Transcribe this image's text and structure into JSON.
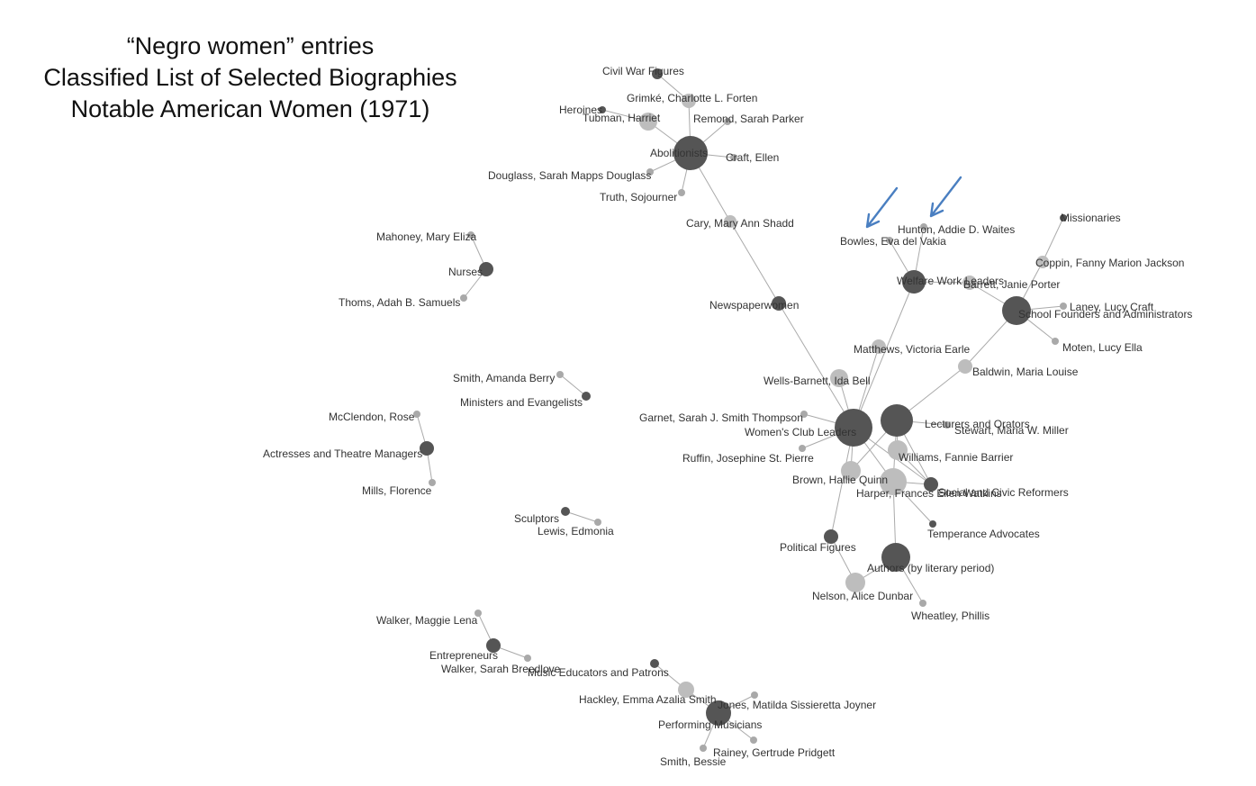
{
  "title": {
    "line1": "“Negro women” entries",
    "line2": "Classified List of Selected Biographies",
    "line3": "Notable American Women (1971)"
  },
  "colors": {
    "category": "#555555",
    "person": "#bdbdbd",
    "person_small": "#a9a9a9",
    "edge": "#aaaaaa",
    "arrow": "#4a7fc1"
  },
  "nodes": [
    {
      "id": "civil-war",
      "label": "Civil War Figures"
    },
    {
      "id": "grimke",
      "label": "Grimké, Charlotte L. Forten"
    },
    {
      "id": "heroines",
      "label": "Heroines"
    },
    {
      "id": "tubman",
      "label": "Tubman, Harriet"
    },
    {
      "id": "remond",
      "label": "Remond, Sarah Parker"
    },
    {
      "id": "abolitionists",
      "label": "Abolitionists"
    },
    {
      "id": "craft",
      "label": "Craft, Ellen"
    },
    {
      "id": "douglass",
      "label": "Douglass, Sarah Mapps Douglass"
    },
    {
      "id": "truth",
      "label": "Truth, Sojourner"
    },
    {
      "id": "cary",
      "label": "Cary, Mary Ann Shadd"
    },
    {
      "id": "newspaperwomen",
      "label": "Newspaperwomen"
    },
    {
      "id": "mahoney",
      "label": "Mahoney, Mary Eliza"
    },
    {
      "id": "nurses",
      "label": "Nurses"
    },
    {
      "id": "thoms",
      "label": "Thoms, Adah B. Samuels"
    },
    {
      "id": "smith-amanda",
      "label": "Smith, Amanda Berry"
    },
    {
      "id": "ministers",
      "label": "Ministers and Evangelists"
    },
    {
      "id": "mcclendon",
      "label": "McClendon, Rose"
    },
    {
      "id": "actresses",
      "label": "Actresses and Theatre Managers"
    },
    {
      "id": "mills",
      "label": "Mills, Florence"
    },
    {
      "id": "sculptors",
      "label": "Sculptors"
    },
    {
      "id": "lewis",
      "label": "Lewis, Edmonia"
    },
    {
      "id": "walker-maggie",
      "label": "Walker, Maggie Lena"
    },
    {
      "id": "entrepreneurs",
      "label": "Entrepreneurs"
    },
    {
      "id": "walker-sarah",
      "label": "Walker, Sarah Breedlove"
    },
    {
      "id": "music-educators",
      "label": "Music Educators and Patrons"
    },
    {
      "id": "hackley",
      "label": "Hackley, Emma Azalia Smith"
    },
    {
      "id": "jones",
      "label": "Jones, Matilda Sissieretta Joyner"
    },
    {
      "id": "performing",
      "label": "Performing Musicians"
    },
    {
      "id": "rainey",
      "label": "Rainey, Gertrude Pridgett"
    },
    {
      "id": "smith-bessie",
      "label": "Smith, Bessie"
    },
    {
      "id": "missionaries",
      "label": "Missionaries"
    },
    {
      "id": "hunton",
      "label": "Hunton, Addie D. Waites"
    },
    {
      "id": "bowles",
      "label": "Bowles, Eva del Vakia"
    },
    {
      "id": "coppin",
      "label": "Coppin, Fanny Marion Jackson"
    },
    {
      "id": "welfare",
      "label": "Welfare Work Leaders"
    },
    {
      "id": "barrett",
      "label": "Barrett, Janie Porter"
    },
    {
      "id": "laney",
      "label": "Laney, Lucy Craft"
    },
    {
      "id": "school-founders",
      "label": "School Founders and Administrators"
    },
    {
      "id": "moten",
      "label": "Moten, Lucy Ella"
    },
    {
      "id": "matthews",
      "label": "Matthews, Victoria Earle"
    },
    {
      "id": "baldwin",
      "label": "Baldwin, Maria Louise"
    },
    {
      "id": "wells",
      "label": "Wells-Barnett, Ida Bell"
    },
    {
      "id": "garnet",
      "label": "Garnet, Sarah J. Smith Thompson"
    },
    {
      "id": "womens-club",
      "label": "Women's Club Leaders"
    },
    {
      "id": "lecturers",
      "label": "Lecturers and Orators"
    },
    {
      "id": "stewart",
      "label": "Stewart, Maria W. Miller"
    },
    {
      "id": "ruffin",
      "label": "Ruffin, Josephine St. Pierre"
    },
    {
      "id": "williams",
      "label": "Williams, Fannie Barrier"
    },
    {
      "id": "brown",
      "label": "Brown, Hallie Quinn"
    },
    {
      "id": "harper",
      "label": "Harper, Frances Ellen Watkins"
    },
    {
      "id": "social-civic",
      "label": "Social and Civic Reformers"
    },
    {
      "id": "temperance",
      "label": "Temperance Advocates"
    },
    {
      "id": "political",
      "label": "Political Figures"
    },
    {
      "id": "authors",
      "label": "Authors (by literary period)"
    },
    {
      "id": "nelson",
      "label": "Nelson, Alice Dunbar"
    },
    {
      "id": "wheatley",
      "label": "Wheatley, Phillis"
    }
  ],
  "edges": [
    [
      "civil-war",
      "grimke"
    ],
    [
      "heroines",
      "tubman"
    ],
    [
      "tubman",
      "abolitionists"
    ],
    [
      "grimke",
      "abolitionists"
    ],
    [
      "remond",
      "abolitionists"
    ],
    [
      "craft",
      "abolitionists"
    ],
    [
      "douglass",
      "abolitionists"
    ],
    [
      "truth",
      "abolitionists"
    ],
    [
      "cary",
      "abolitionists"
    ],
    [
      "cary",
      "newspaperwomen"
    ],
    [
      "newspaperwomen",
      "womens-club"
    ],
    [
      "mahoney",
      "nurses"
    ],
    [
      "nurses",
      "thoms"
    ],
    [
      "smith-amanda",
      "ministers"
    ],
    [
      "mcclendon",
      "actresses"
    ],
    [
      "actresses",
      "mills"
    ],
    [
      "sculptors",
      "lewis"
    ],
    [
      "walker-maggie",
      "entrepreneurs"
    ],
    [
      "entrepreneurs",
      "walker-sarah"
    ],
    [
      "music-educators",
      "hackley"
    ],
    [
      "hackley",
      "performing"
    ],
    [
      "jones",
      "performing"
    ],
    [
      "rainey",
      "performing"
    ],
    [
      "smith-bessie",
      "performing"
    ],
    [
      "missionaries",
      "coppin"
    ],
    [
      "coppin",
      "school-founders"
    ],
    [
      "hunton",
      "welfare"
    ],
    [
      "bowles",
      "welfare"
    ],
    [
      "welfare",
      "barrett"
    ],
    [
      "barrett",
      "school-founders"
    ],
    [
      "laney",
      "school-founders"
    ],
    [
      "moten",
      "school-founders"
    ],
    [
      "welfare",
      "womens-club"
    ],
    [
      "matthews",
      "womens-club"
    ],
    [
      "baldwin",
      "school-founders"
    ],
    [
      "baldwin",
      "lecturers"
    ],
    [
      "wells",
      "womens-club"
    ],
    [
      "garnet",
      "womens-club"
    ],
    [
      "ruffin",
      "womens-club"
    ],
    [
      "womens-club",
      "brown"
    ],
    [
      "womens-club",
      "harper"
    ],
    [
      "womens-club",
      "social-civic"
    ],
    [
      "womens-club",
      "political"
    ],
    [
      "lecturers",
      "stewart"
    ],
    [
      "lecturers",
      "williams"
    ],
    [
      "lecturers",
      "harper"
    ],
    [
      "lecturers",
      "brown"
    ],
    [
      "lecturers",
      "social-civic"
    ],
    [
      "harper",
      "social-civic"
    ],
    [
      "harper",
      "temperance"
    ],
    [
      "harper",
      "authors"
    ],
    [
      "williams",
      "social-civic"
    ],
    [
      "political",
      "nelson"
    ],
    [
      "authors",
      "nelson"
    ],
    [
      "authors",
      "wheatley"
    ]
  ]
}
